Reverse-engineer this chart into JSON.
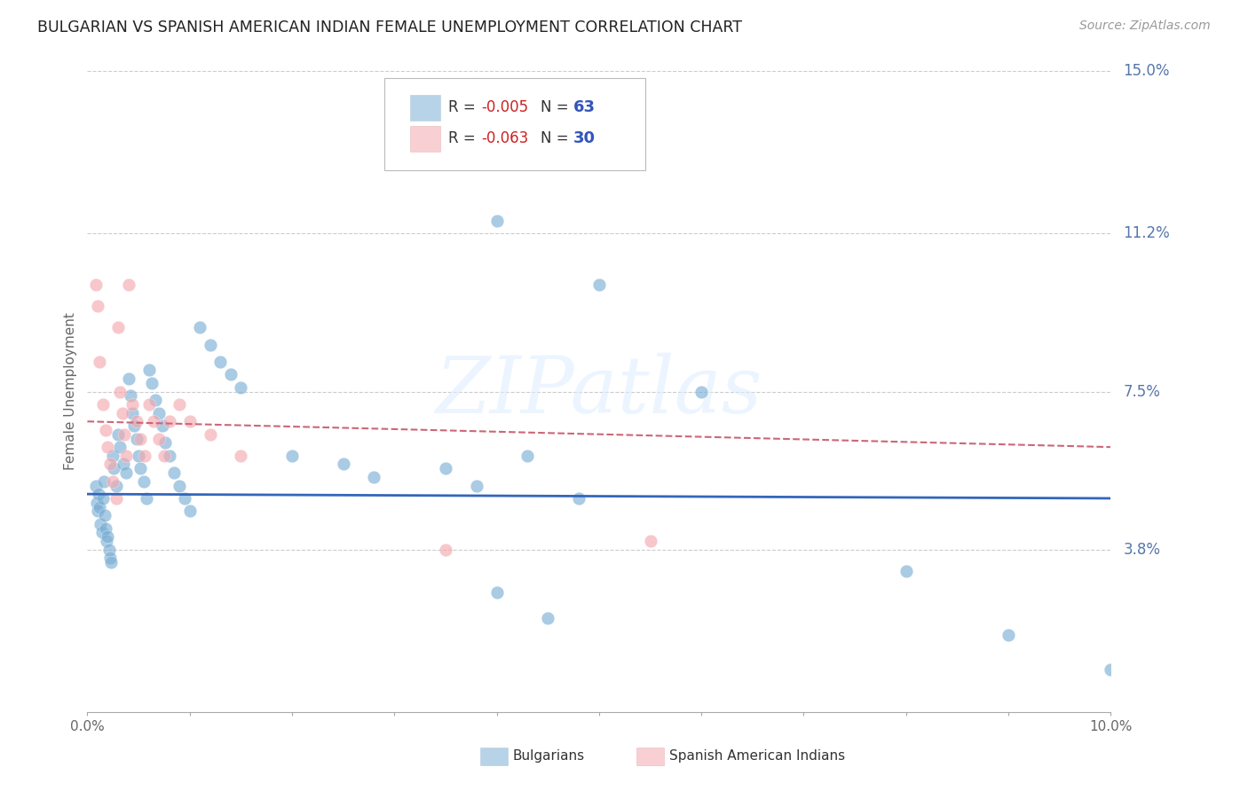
{
  "title": "BULGARIAN VS SPANISH AMERICAN INDIAN FEMALE UNEMPLOYMENT CORRELATION CHART",
  "source": "Source: ZipAtlas.com",
  "ylabel": "Female Unemployment",
  "xlim": [
    0.0,
    0.1
  ],
  "ylim": [
    0.0,
    0.15
  ],
  "ytick_vals": [
    0.038,
    0.075,
    0.112,
    0.15
  ],
  "ytick_labels": [
    "3.8%",
    "7.5%",
    "11.2%",
    "15.0%"
  ],
  "xtick_vals": [
    0.0,
    0.01,
    0.02,
    0.03,
    0.04,
    0.05,
    0.06,
    0.07,
    0.08,
    0.09,
    0.1
  ],
  "xtick_labels": [
    "0.0%",
    "",
    "",
    "",
    "",
    "",
    "",
    "",
    "",
    "",
    "10.0%"
  ],
  "bg_color": "#ffffff",
  "grid_color": "#cccccc",
  "blue_color": "#7bafd4",
  "pink_color": "#f4a9b0",
  "blue_line_color": "#3366bb",
  "pink_line_color": "#cc6677",
  "axis_label_color": "#5577aa",
  "watermark": "ZIPatlas",
  "legend_R_blue": "-0.005",
  "legend_N_blue": "63",
  "legend_R_pink": "-0.063",
  "legend_N_pink": "30",
  "blue_scatter": [
    [
      0.0008,
      0.053
    ],
    [
      0.0009,
      0.049
    ],
    [
      0.001,
      0.047
    ],
    [
      0.0011,
      0.051
    ],
    [
      0.0012,
      0.048
    ],
    [
      0.0013,
      0.044
    ],
    [
      0.0014,
      0.042
    ],
    [
      0.0015,
      0.05
    ],
    [
      0.0016,
      0.054
    ],
    [
      0.0017,
      0.046
    ],
    [
      0.0018,
      0.043
    ],
    [
      0.0019,
      0.04
    ],
    [
      0.002,
      0.041
    ],
    [
      0.0021,
      0.038
    ],
    [
      0.0022,
      0.036
    ],
    [
      0.0023,
      0.035
    ],
    [
      0.0025,
      0.06
    ],
    [
      0.0026,
      0.057
    ],
    [
      0.0028,
      0.053
    ],
    [
      0.003,
      0.065
    ],
    [
      0.0032,
      0.062
    ],
    [
      0.0035,
      0.058
    ],
    [
      0.0038,
      0.056
    ],
    [
      0.004,
      0.078
    ],
    [
      0.0042,
      0.074
    ],
    [
      0.0044,
      0.07
    ],
    [
      0.0046,
      0.067
    ],
    [
      0.0048,
      0.064
    ],
    [
      0.005,
      0.06
    ],
    [
      0.0052,
      0.057
    ],
    [
      0.0055,
      0.054
    ],
    [
      0.0058,
      0.05
    ],
    [
      0.006,
      0.08
    ],
    [
      0.0063,
      0.077
    ],
    [
      0.0066,
      0.073
    ],
    [
      0.007,
      0.07
    ],
    [
      0.0073,
      0.067
    ],
    [
      0.0076,
      0.063
    ],
    [
      0.008,
      0.06
    ],
    [
      0.0085,
      0.056
    ],
    [
      0.009,
      0.053
    ],
    [
      0.0095,
      0.05
    ],
    [
      0.01,
      0.047
    ],
    [
      0.011,
      0.09
    ],
    [
      0.012,
      0.086
    ],
    [
      0.013,
      0.082
    ],
    [
      0.014,
      0.079
    ],
    [
      0.015,
      0.076
    ],
    [
      0.02,
      0.06
    ],
    [
      0.025,
      0.058
    ],
    [
      0.028,
      0.055
    ],
    [
      0.035,
      0.057
    ],
    [
      0.038,
      0.053
    ],
    [
      0.04,
      0.115
    ],
    [
      0.043,
      0.06
    ],
    [
      0.048,
      0.05
    ],
    [
      0.05,
      0.1
    ],
    [
      0.06,
      0.075
    ],
    [
      0.04,
      0.028
    ],
    [
      0.045,
      0.022
    ],
    [
      0.08,
      0.033
    ],
    [
      0.09,
      0.018
    ],
    [
      0.1,
      0.01
    ]
  ],
  "pink_scatter": [
    [
      0.0008,
      0.1
    ],
    [
      0.001,
      0.095
    ],
    [
      0.0012,
      0.082
    ],
    [
      0.0015,
      0.072
    ],
    [
      0.0018,
      0.066
    ],
    [
      0.002,
      0.062
    ],
    [
      0.0022,
      0.058
    ],
    [
      0.0025,
      0.054
    ],
    [
      0.0028,
      0.05
    ],
    [
      0.003,
      0.09
    ],
    [
      0.0032,
      0.075
    ],
    [
      0.0034,
      0.07
    ],
    [
      0.0036,
      0.065
    ],
    [
      0.0038,
      0.06
    ],
    [
      0.004,
      0.1
    ],
    [
      0.0044,
      0.072
    ],
    [
      0.0048,
      0.068
    ],
    [
      0.0052,
      0.064
    ],
    [
      0.0056,
      0.06
    ],
    [
      0.006,
      0.072
    ],
    [
      0.0065,
      0.068
    ],
    [
      0.007,
      0.064
    ],
    [
      0.0075,
      0.06
    ],
    [
      0.008,
      0.068
    ],
    [
      0.009,
      0.072
    ],
    [
      0.01,
      0.068
    ],
    [
      0.012,
      0.065
    ],
    [
      0.015,
      0.06
    ],
    [
      0.035,
      0.038
    ],
    [
      0.055,
      0.04
    ]
  ],
  "blue_trend_x": [
    0.0,
    0.1
  ],
  "blue_trend_y": [
    0.051,
    0.05
  ],
  "pink_trend_x": [
    0.0,
    0.1
  ],
  "pink_trend_y": [
    0.068,
    0.062
  ]
}
